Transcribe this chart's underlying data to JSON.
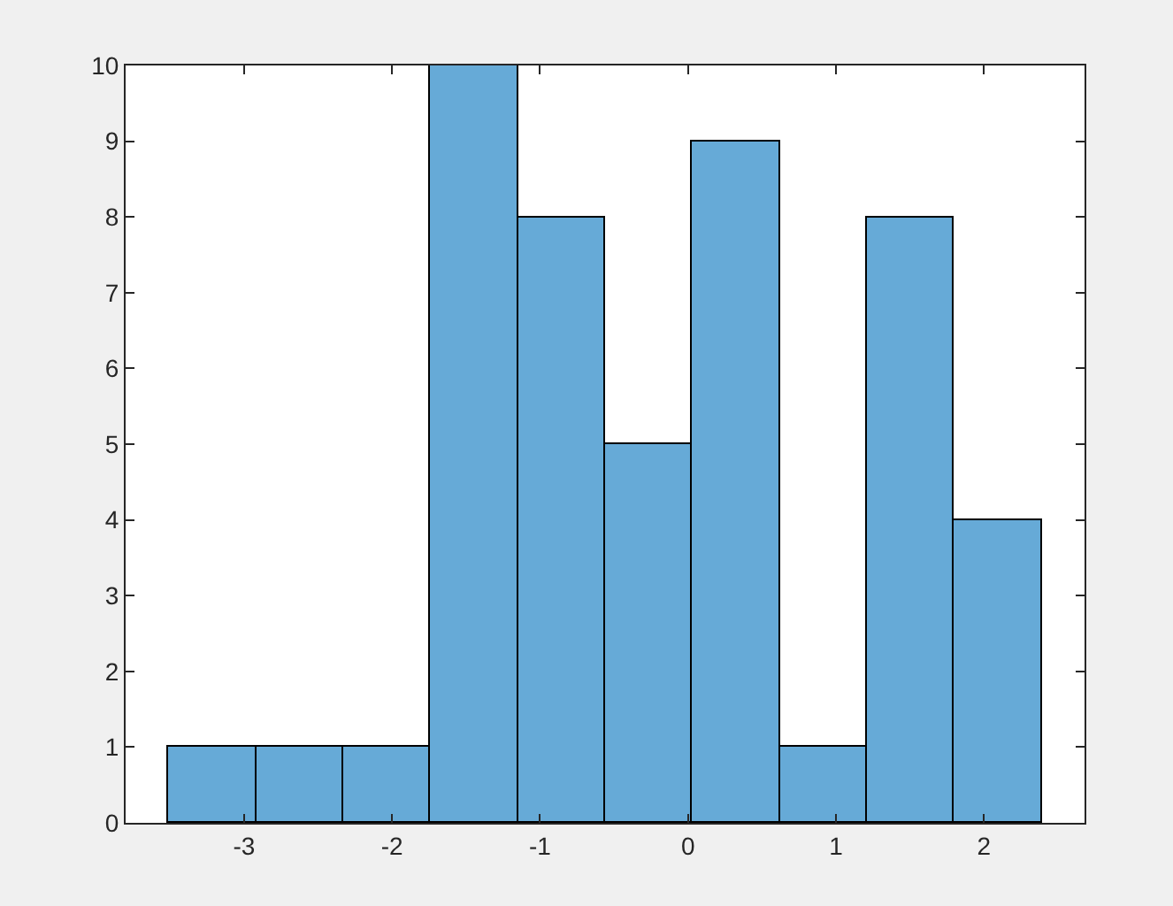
{
  "chart_data": {
    "type": "histogram",
    "bins": [
      -3.51,
      -2.92,
      -2.33,
      -1.74,
      -1.15,
      -0.56,
      0.03,
      0.62,
      1.21,
      1.8,
      2.39
    ],
    "values": [
      1,
      1,
      1,
      10,
      8,
      5,
      9,
      1,
      8,
      4
    ],
    "color": "#66aad7",
    "xlim": [
      -3.8,
      2.68
    ],
    "xticks": [
      -3,
      -2,
      -1,
      0,
      1,
      2
    ],
    "ylim": [
      0,
      10
    ],
    "yticks": [
      0,
      1,
      2,
      3,
      4,
      5,
      6,
      7,
      8,
      9,
      10
    ]
  }
}
